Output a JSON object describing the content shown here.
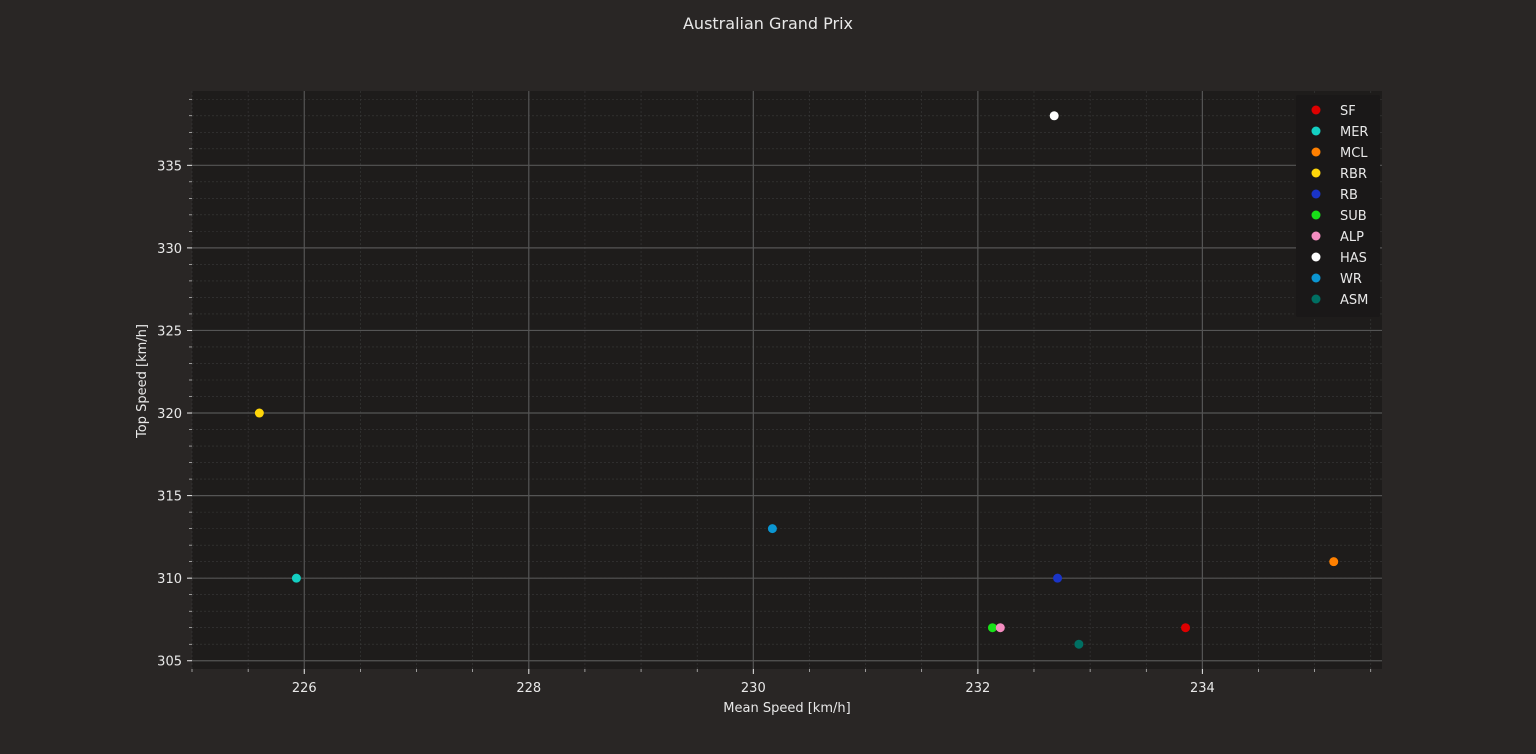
{
  "colors": {
    "figure_bg": "#292625",
    "axes_bg": "#1e1c1b",
    "text": "#e8e8e8",
    "grid_major": "#555555",
    "grid_minor": "#3a3a3a",
    "legend_bg": "#1a1818"
  },
  "chart_data": {
    "type": "scatter",
    "title": "Australian Grand Prix",
    "xlabel": "Mean Speed [km/h]",
    "ylabel": "Top Speed [km/h]",
    "xlim": [
      225.0,
      235.6
    ],
    "ylim": [
      304.5,
      339.5
    ],
    "xticks": [
      226,
      228,
      230,
      232,
      234
    ],
    "yticks": [
      305,
      310,
      315,
      320,
      325,
      330,
      335
    ],
    "x_minor_step": 0.5,
    "y_minor_step": 1,
    "grid": true,
    "legend_position": "top-right",
    "series": [
      {
        "name": "SF",
        "color": "#dd0000",
        "x": 233.85,
        "y": 307
      },
      {
        "name": "MER",
        "color": "#14cfc2",
        "x": 225.93,
        "y": 310
      },
      {
        "name": "MCL",
        "color": "#ff8000",
        "x": 235.17,
        "y": 311
      },
      {
        "name": "RBR",
        "color": "#ffd60a",
        "x": 225.6,
        "y": 320
      },
      {
        "name": "RB",
        "color": "#1a34c7",
        "x": 232.71,
        "y": 310
      },
      {
        "name": "SUB",
        "color": "#18e018",
        "x": 232.13,
        "y": 307
      },
      {
        "name": "ALP",
        "color": "#f48cc0",
        "x": 232.2,
        "y": 307
      },
      {
        "name": "HAS",
        "color": "#ffffff",
        "x": 232.68,
        "y": 338
      },
      {
        "name": "WR",
        "color": "#0b96d2",
        "x": 230.17,
        "y": 313
      },
      {
        "name": "ASM",
        "color": "#006f62",
        "x": 232.9,
        "y": 306
      }
    ]
  }
}
